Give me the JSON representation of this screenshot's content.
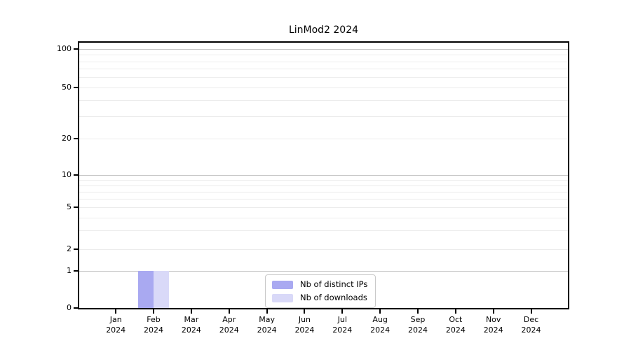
{
  "title": "LinMod2 2024",
  "legend": {
    "items": [
      {
        "label": "Nb of distinct IPs",
        "color": "#a9a9f1"
      },
      {
        "label": "Nb of downloads",
        "color": "#d9d9f8"
      }
    ]
  },
  "y_axis": {
    "tick_labels": [
      "100",
      "50",
      "20",
      "10",
      "5",
      "2",
      "1",
      "0"
    ]
  },
  "x_axis": {
    "months": [
      "Jan",
      "Feb",
      "Mar",
      "Apr",
      "May",
      "Jun",
      "Jul",
      "Aug",
      "Sep",
      "Oct",
      "Nov",
      "Dec"
    ],
    "year": "2024"
  },
  "chart_data": {
    "type": "bar",
    "title": "LinMod2 2024",
    "categories": [
      "Jan 2024",
      "Feb 2024",
      "Mar 2024",
      "Apr 2024",
      "May 2024",
      "Jun 2024",
      "Jul 2024",
      "Aug 2024",
      "Sep 2024",
      "Oct 2024",
      "Nov 2024",
      "Dec 2024"
    ],
    "series": [
      {
        "name": "Nb of distinct IPs",
        "color": "#a9a9f1",
        "values": [
          0,
          1,
          0,
          0,
          0,
          0,
          0,
          0,
          0,
          0,
          0,
          0
        ]
      },
      {
        "name": "Nb of downloads",
        "color": "#d9d9f8",
        "values": [
          0,
          1,
          0,
          0,
          0,
          0,
          0,
          0,
          0,
          0,
          0,
          0
        ]
      }
    ],
    "yscale": "symlog",
    "ylim": [
      0,
      100
    ],
    "y_tick_values": [
      100,
      50,
      20,
      10,
      5,
      2,
      1,
      0
    ],
    "grid": true,
    "legend_position": "lower center"
  }
}
